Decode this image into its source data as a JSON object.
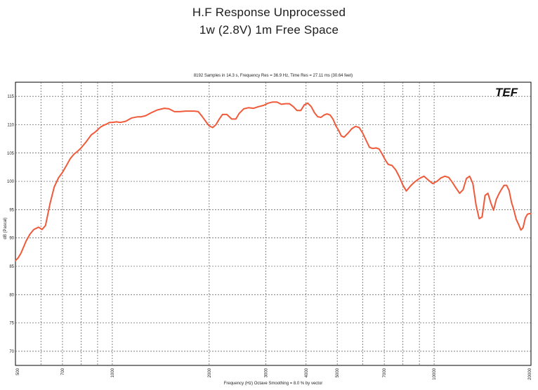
{
  "chart_data": {
    "type": "line",
    "title": "H.F Response Unprocessed",
    "subtitle": "1w (2.8V) 1m Free Space",
    "header": "8192 Samples in 14.3 s, Frequency Res = 36.9 Hz, Time Res = 27.11 ms (30.64 feet)",
    "xlabel": "Frequency (Hz) Octave Smoothing = 8.0 % by vector",
    "ylabel": "dB (Pascal)",
    "logo": "TEF",
    "x_scale": "log",
    "xlim": [
      500,
      20000
    ],
    "ylim": [
      67.5,
      117.5
    ],
    "x_ticks": [
      500,
      700,
      1000,
      2000,
      3000,
      4000,
      5000,
      7000,
      10000,
      20000
    ],
    "x_tick_labels": [
      "500",
      "700",
      "1000",
      "2000",
      "3000",
      "4000",
      "5000",
      "7000",
      "10000",
      "20000"
    ],
    "y_ticks": [
      70,
      75,
      80,
      85,
      90,
      95,
      100,
      105,
      110,
      115
    ],
    "y_tick_labels": [
      "70",
      "75",
      "80",
      "85",
      "90",
      "95",
      "100",
      "105",
      "110",
      "115"
    ],
    "grid": true,
    "line_color": "#f05a3a",
    "series": [
      {
        "x": [
          500,
          510,
          520,
          530,
          540,
          555,
          570,
          590,
          605,
          620,
          640,
          660,
          680,
          700,
          720,
          740,
          760,
          780,
          800,
          830,
          860,
          880,
          900,
          920,
          940,
          960,
          980,
          1000,
          1030,
          1060,
          1100,
          1150,
          1200,
          1230,
          1270,
          1320,
          1380,
          1450,
          1500,
          1560,
          1620,
          1690,
          1750,
          1800,
          1850,
          1900,
          1950,
          2000,
          2050,
          2100,
          2150,
          2200,
          2270,
          2350,
          2420,
          2480,
          2560,
          2650,
          2750,
          2850,
          2950,
          3050,
          3150,
          3250,
          3350,
          3450,
          3550,
          3650,
          3750,
          3850,
          3950,
          4050,
          4150,
          4250,
          4350,
          4450,
          4550,
          4650,
          4750,
          4850,
          4950,
          5050,
          5150,
          5250,
          5400,
          5550,
          5700,
          5850,
          6000,
          6150,
          6300,
          6450,
          6600,
          6750,
          6900,
          7050,
          7200,
          7400,
          7600,
          7800,
          8000,
          8200,
          8450,
          8700,
          9000,
          9300,
          9600,
          9900,
          10200,
          10500,
          10800,
          11100,
          11400,
          11700,
          12000,
          12300,
          12600,
          12900,
          13200,
          13500,
          13800,
          14100,
          14400,
          14700,
          15000,
          15300,
          15600,
          15900,
          16200,
          16500,
          16800,
          17100,
          17400,
          17700,
          18000,
          18300,
          18600,
          18900,
          19200,
          19500,
          19800,
          20000
        ],
        "y": [
          86.0,
          86.5,
          87.3,
          88.4,
          89.5,
          90.7,
          91.5,
          91.9,
          91.5,
          92.2,
          96.0,
          99.0,
          100.6,
          101.6,
          102.8,
          104.0,
          104.8,
          105.3,
          105.9,
          107.0,
          108.2,
          108.6,
          109.1,
          109.6,
          109.9,
          110.1,
          110.4,
          110.4,
          110.5,
          110.4,
          110.6,
          111.2,
          111.4,
          111.4,
          111.6,
          112.1,
          112.6,
          112.9,
          112.8,
          112.3,
          112.3,
          112.4,
          112.4,
          112.4,
          112.3,
          111.5,
          110.6,
          109.8,
          109.5,
          110.0,
          111.0,
          111.8,
          111.8,
          111.0,
          111.0,
          112.0,
          112.8,
          113.0,
          112.9,
          113.2,
          113.4,
          113.8,
          114.0,
          114.0,
          113.6,
          113.7,
          113.7,
          113.2,
          112.5,
          112.5,
          113.5,
          113.8,
          113.2,
          112.1,
          111.4,
          111.3,
          111.7,
          111.9,
          111.7,
          111.0,
          109.8,
          109.0,
          108.0,
          107.8,
          108.5,
          109.3,
          109.7,
          109.5,
          108.5,
          107.2,
          106.0,
          105.8,
          105.9,
          105.7,
          104.8,
          103.8,
          103.0,
          102.8,
          102.0,
          100.8,
          99.3,
          98.3,
          99.2,
          99.9,
          100.5,
          100.9,
          100.2,
          99.6,
          100.0,
          100.6,
          100.9,
          100.7,
          99.8,
          98.8,
          97.9,
          98.5,
          100.5,
          100.9,
          99.6,
          95.8,
          93.4,
          93.7,
          97.5,
          97.9,
          96.2,
          94.9,
          96.8,
          97.8,
          98.6,
          99.3,
          99.3,
          98.4,
          96.3,
          94.9,
          93.3,
          92.4,
          91.4,
          91.8,
          93.5,
          94.2,
          94.3,
          94.3
        ]
      }
    ]
  }
}
